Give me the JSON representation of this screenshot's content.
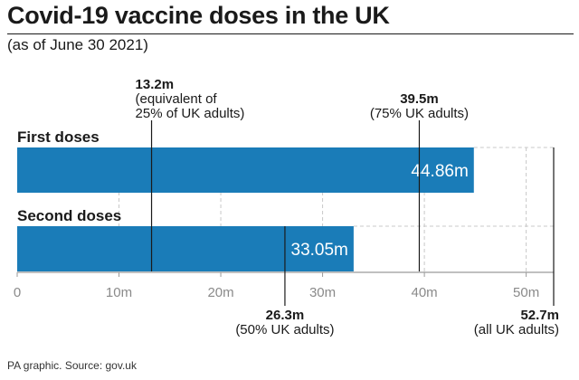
{
  "title": "Covid-19 vaccine doses in the UK",
  "subtitle": "(as of June 30 2021)",
  "footer": "PA graphic. Source: gov.uk",
  "colors": {
    "bar": "#1a7cb8",
    "text": "#1a1a1a",
    "axis": "#9a9a9a",
    "grid": "#c8c8c8"
  },
  "chart_data": {
    "type": "bar",
    "orientation": "horizontal",
    "categories": [
      "First doses",
      "Second doses"
    ],
    "values": [
      44.86,
      33.05
    ],
    "value_labels": [
      "44.86m",
      "33.05m"
    ],
    "xlim": [
      0,
      52.7
    ],
    "xticks": [
      0,
      10,
      20,
      30,
      40,
      50
    ],
    "xtick_labels": [
      "0",
      "10m",
      "20m",
      "30m",
      "40m",
      "50m"
    ],
    "grid": true,
    "annotations": [
      {
        "value": 13.2,
        "lines": [
          "13.2m",
          "(equivalent of",
          "25% of UK adults)"
        ],
        "position": "top"
      },
      {
        "value": 39.5,
        "lines": [
          "39.5m",
          "(75% UK adults)"
        ],
        "position": "top"
      },
      {
        "value": 26.3,
        "lines": [
          "26.3m",
          "(50% UK adults)"
        ],
        "position": "bottom"
      },
      {
        "value": 52.7,
        "lines": [
          "52.7m",
          "(all UK adults)"
        ],
        "position": "bottom"
      }
    ]
  }
}
